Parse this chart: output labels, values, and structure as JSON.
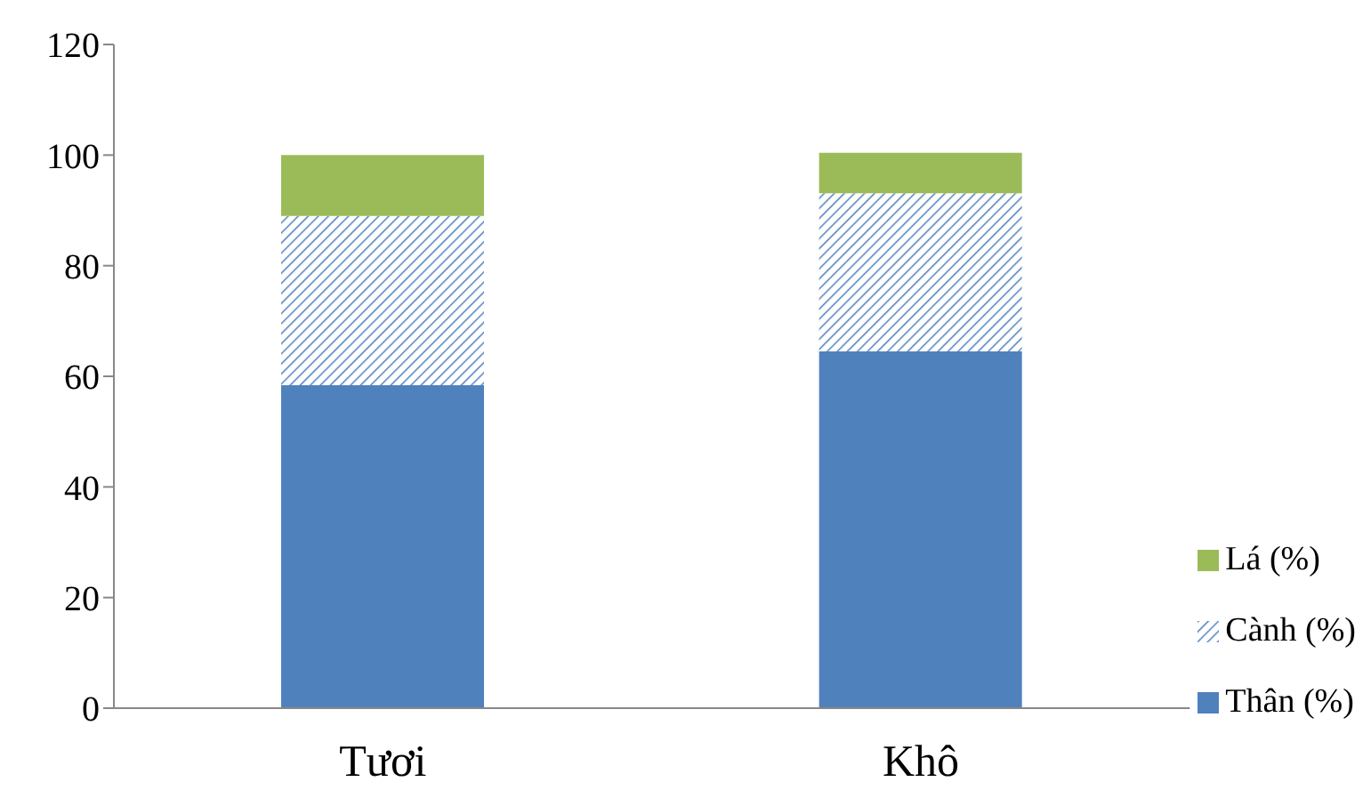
{
  "chart_data": {
    "type": "bar",
    "stacked": true,
    "categories": [
      "Tươi",
      "Khô"
    ],
    "series": [
      {
        "name": "Thân (%)",
        "color": "#4f81bd",
        "values": [
          58.4,
          64.5
        ]
      },
      {
        "name": "Cành (%)",
        "color": "#4f81bd",
        "values": [
          30.6,
          28.6
        ]
      },
      {
        "name": "Lá (%)",
        "color": "#9bbb59",
        "values": [
          11.0,
          7.3
        ]
      }
    ],
    "ylim": [
      0,
      120
    ],
    "yticks": [
      0,
      20,
      40,
      60,
      80,
      100,
      120
    ],
    "grid": false,
    "legend": "bottom right"
  }
}
